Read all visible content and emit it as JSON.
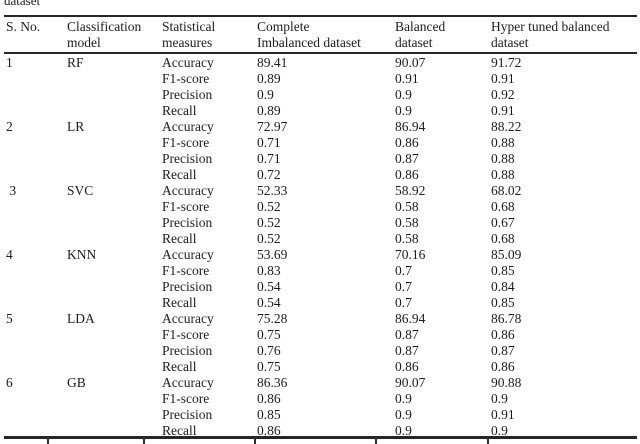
{
  "caption": {
    "text": "dataset"
  },
  "colors": {
    "background": "#ffffff",
    "text": "#1c1c1c",
    "rule": "#262626"
  },
  "table": {
    "headers": [
      {
        "line1": "S. No.",
        "line2": ""
      },
      {
        "line1": "Classification",
        "line2": "model"
      },
      {
        "line1": "Statistical",
        "line2": "measures"
      },
      {
        "line1": "Complete",
        "line2": "Imbalanced dataset"
      },
      {
        "line1": "Balanced",
        "line2": "dataset"
      },
      {
        "line1": "Hyper tuned balanced",
        "line2": "dataset"
      }
    ],
    "groups": [
      {
        "sno": "1",
        "model": "RF",
        "rows": [
          [
            "Accuracy",
            "89.41",
            "90.07",
            "91.72"
          ],
          [
            "F1-score",
            "0.89",
            "0.91",
            "0.91"
          ],
          [
            "Precision",
            "0.9",
            "0.9",
            "0.92"
          ],
          [
            "Recall",
            "0.89",
            "0.9",
            "0.91"
          ]
        ]
      },
      {
        "sno": "2",
        "model": "LR",
        "rows": [
          [
            "Accuracy",
            "72.97",
            "86.94",
            "88.22"
          ],
          [
            "F1-score",
            "0.71",
            "0.86",
            "0.88"
          ],
          [
            "Precision",
            "0.71",
            "0.87",
            "0.88"
          ],
          [
            "Recall",
            "0.72",
            "0.86",
            "0.88"
          ]
        ]
      },
      {
        "sno": " 3",
        "model": "SVC",
        "rows": [
          [
            "Accuracy",
            "52.33",
            "58.92",
            "68.02"
          ],
          [
            "F1-score",
            "0.52",
            "0.58",
            "0.68"
          ],
          [
            "Precision",
            "0.52",
            "0.58",
            "0.67"
          ],
          [
            "Recall",
            "0.52",
            "0.58",
            "0.68"
          ]
        ]
      },
      {
        "sno": "4",
        "model": "KNN",
        "rows": [
          [
            "Accuracy",
            "53.69",
            "70.16",
            "85.09"
          ],
          [
            "F1-score",
            "0.83",
            "0.7",
            "0.85"
          ],
          [
            "Precision",
            "0.54",
            "0.7",
            "0.84"
          ],
          [
            "Recall",
            "0.54",
            "0.7",
            "0.85"
          ]
        ]
      },
      {
        "sno": "5",
        "model": "LDA",
        "rows": [
          [
            "Accuracy",
            "75.28",
            "86.94",
            "86.78"
          ],
          [
            "F1-score",
            "0.75",
            "0.87",
            "0.86"
          ],
          [
            "Precision",
            "0.76",
            "0.87",
            "0.87"
          ],
          [
            "Recall",
            "0.75",
            "0.86",
            "0.86"
          ]
        ]
      },
      {
        "sno": "6",
        "model": "GB",
        "rows": [
          [
            "Accuracy",
            "86.36",
            "90.07",
            "90.88"
          ],
          [
            "F1-score",
            "0.86",
            "0.9",
            "0.9"
          ],
          [
            "Precision",
            "0.85",
            "0.9",
            "0.91"
          ],
          [
            "Recall",
            "0.86",
            "0.9",
            "0.9"
          ]
        ]
      }
    ]
  }
}
